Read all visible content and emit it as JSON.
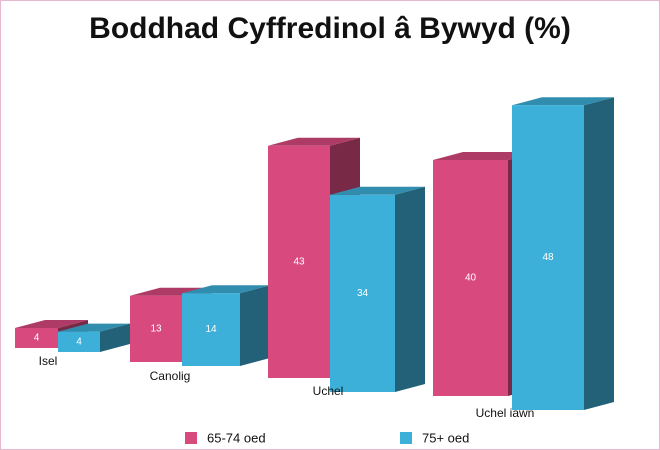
{
  "chart_data": {
    "type": "bar",
    "title": "Boddhad Cyffredinol â Bywyd (%)",
    "categories": [
      "Isel",
      "Canolig",
      "Uchel",
      "Uchel iawn"
    ],
    "series": [
      {
        "name": "65-74 oed",
        "color": "#d84a7e",
        "values": [
          4,
          13,
          43,
          40
        ]
      },
      {
        "name": "75+ oed",
        "color": "#3db0da",
        "values": [
          4,
          14,
          34,
          48
        ]
      }
    ],
    "legend": "bottom"
  }
}
